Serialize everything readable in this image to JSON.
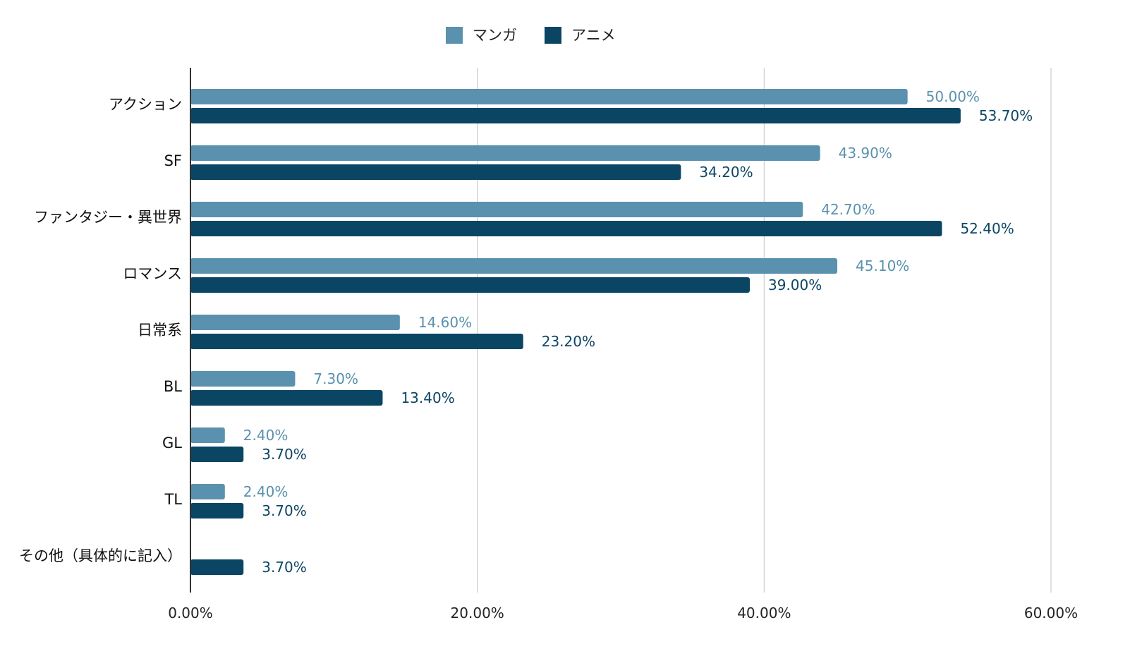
{
  "chart_data": {
    "type": "bar",
    "orientation": "horizontal",
    "title": "",
    "xlabel": "",
    "ylabel": "",
    "categories": [
      "アクション",
      "SF",
      "ファンタジー・異世界",
      "ロマンス",
      "日常系",
      "BL",
      "GL",
      "TL",
      "その他（具体的に記入）"
    ],
    "series": [
      {
        "name": "マンガ",
        "color": "#5a91ae",
        "values": [
          50.0,
          43.9,
          42.7,
          45.1,
          14.6,
          7.3,
          2.4,
          2.4,
          null
        ],
        "labels": [
          "50.00%",
          "43.90%",
          "42.70%",
          "45.10%",
          "14.60%",
          "7.30%",
          "2.40%",
          "2.40%",
          ""
        ]
      },
      {
        "name": "アニメ",
        "color": "#0b4564",
        "values": [
          53.7,
          34.2,
          52.4,
          39.0,
          23.2,
          13.4,
          3.7,
          3.7,
          3.7
        ],
        "labels": [
          "53.70%",
          "34.20%",
          "52.40%",
          "39.00%",
          "23.20%",
          "13.40%",
          "3.70%",
          "3.70%",
          "3.70%"
        ]
      }
    ],
    "xlim": [
      0,
      60
    ],
    "xticks": [
      0,
      20,
      40,
      60
    ],
    "xtick_labels": [
      "0.00%",
      "20.00%",
      "40.00%",
      "60.00%"
    ],
    "grid": "vertical",
    "legend_position": "top-center"
  }
}
